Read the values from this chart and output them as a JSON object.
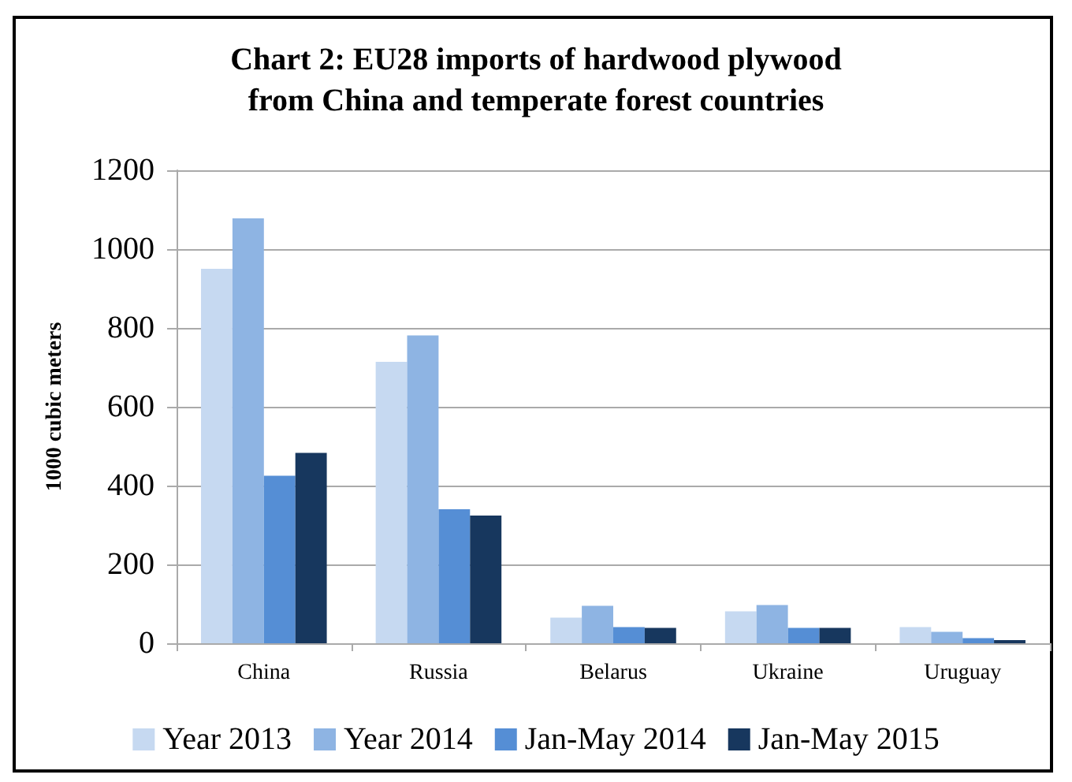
{
  "chart_data": {
    "type": "bar",
    "title": "Chart 2: EU28 imports of hardwood plywood\nfrom China and temperate forest countries",
    "ylabel": "1000 cubic meters",
    "categories": [
      "China",
      "Russia",
      "Belarus",
      "Ukraine",
      "Uruguay"
    ],
    "series": [
      {
        "name": "Year 2013",
        "color": "#c6d9f1",
        "values": [
          950,
          714,
          65,
          81,
          41
        ]
      },
      {
        "name": "Year 2014",
        "color": "#8eb4e3",
        "values": [
          1078,
          781,
          95,
          97,
          29
        ]
      },
      {
        "name": "Jan-May 2014",
        "color": "#558ed5",
        "values": [
          425,
          340,
          41,
          39,
          13
        ]
      },
      {
        "name": "Jan-May 2015",
        "color": "#17375e",
        "values": [
          483,
          324,
          39,
          39,
          8
        ]
      }
    ],
    "ylim": [
      0,
      1200
    ],
    "yticks": [
      0,
      200,
      400,
      600,
      800,
      1000,
      1200
    ],
    "grid": "y",
    "legend": "bottom"
  }
}
